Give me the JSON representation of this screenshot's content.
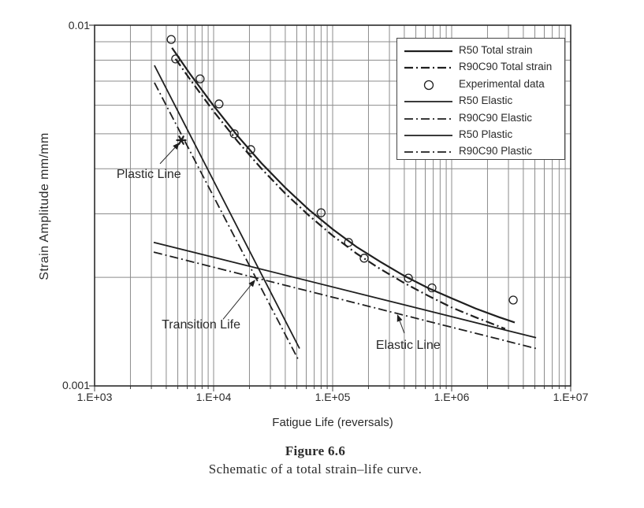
{
  "figure": {
    "label": "Figure 6.6",
    "caption": "Schematic of a total strain–life curve."
  },
  "chart_data": {
    "type": "line",
    "title": "",
    "xlabel": "Fatigue Life (reversals)",
    "ylabel": "Strain Amplitude mm/mm",
    "x_scale": "log",
    "y_scale": "log",
    "x_range": [
      1000,
      10000000
    ],
    "y_range": [
      0.001,
      0.01
    ],
    "x_ticks": [
      "1.E+03",
      "1.E+04",
      "1.E+05",
      "1.E+06",
      "1.E+07"
    ],
    "y_ticks": [
      "0.01",
      "0.001"
    ],
    "grid": "log minor gridlines on, both axes",
    "legend_position": "top-right",
    "colors": {
      "line": "#1f1f1f",
      "grid": "#8c8c8c",
      "text": "#2b2b2b"
    },
    "series": [
      {
        "name": "R50 Total strain",
        "style": "solid",
        "width": 2.2,
        "points": [
          [
            4470,
            0.00865
          ],
          [
            6310,
            0.00734
          ],
          [
            10000,
            0.00598
          ],
          [
            15850,
            0.00494
          ],
          [
            25120,
            0.00415
          ],
          [
            39810,
            0.00355
          ],
          [
            63100,
            0.00308
          ],
          [
            100000,
            0.00272
          ],
          [
            158500,
            0.00243
          ],
          [
            251200,
            0.00221
          ],
          [
            398100,
            0.00202
          ],
          [
            631000,
            0.00187
          ],
          [
            1000000,
            0.00175
          ],
          [
            1585000,
            0.00164
          ],
          [
            2512000,
            0.00155
          ],
          [
            3388000,
            0.0015
          ]
        ]
      },
      {
        "name": "R90C90 Total strain",
        "style": "dashdot",
        "width": 2.2,
        "points": [
          [
            4790,
            0.00807
          ],
          [
            6310,
            0.00709
          ],
          [
            10000,
            0.00577
          ],
          [
            15850,
            0.00477
          ],
          [
            25120,
            0.00401
          ],
          [
            39810,
            0.00342
          ],
          [
            63100,
            0.00297
          ],
          [
            100000,
            0.00261
          ],
          [
            158500,
            0.00233
          ],
          [
            251200,
            0.00211
          ],
          [
            398100,
            0.00193
          ],
          [
            631000,
            0.00178
          ],
          [
            1000000,
            0.00165
          ],
          [
            1585000,
            0.00155
          ],
          [
            2818000,
            0.00144
          ]
        ]
      },
      {
        "name": "Experimental data",
        "style": "circles",
        "width": 1.3,
        "points": [
          [
            4400,
            0.00913
          ],
          [
            4800,
            0.00806
          ],
          [
            7700,
            0.0071
          ],
          [
            11100,
            0.00605
          ],
          [
            14900,
            0.005
          ],
          [
            20500,
            0.00452
          ],
          [
            80000,
            0.00302
          ],
          [
            136000,
            0.0025
          ],
          [
            184000,
            0.00226
          ],
          [
            433000,
            0.00199
          ],
          [
            683000,
            0.00187
          ],
          [
            3290000,
            0.00173
          ]
        ]
      },
      {
        "name": "R50 Elastic",
        "style": "solid",
        "width": 1.8,
        "points": [
          [
            3140,
            0.0025
          ],
          [
            5120000,
            0.00136
          ]
        ]
      },
      {
        "name": "R90C90 Elastic",
        "style": "dashdot",
        "width": 1.8,
        "points": [
          [
            3140,
            0.00235
          ],
          [
            5120000,
            0.00127
          ]
        ]
      },
      {
        "name": "R50 Plastic",
        "style": "solid",
        "width": 1.8,
        "points": [
          [
            3180,
            0.00774
          ],
          [
            52700,
            0.00127
          ]
        ]
      },
      {
        "name": "R90C90 Plastic",
        "style": "dashdot",
        "width": 1.8,
        "points": [
          [
            3180,
            0.00693
          ],
          [
            51000,
            0.00119
          ]
        ]
      }
    ],
    "annotations": [
      {
        "text": "Plastic Line",
        "label_at": [
          1530,
          0.00403
        ],
        "arrow_from": [
          3545,
          0.00413
        ],
        "arrow_to": [
          5190,
          0.00473
        ],
        "marker": "star",
        "marker_at": [
          5350,
          0.0048
        ]
      },
      {
        "text": "Transition Life",
        "label_at": [
          3660,
          0.00154
        ],
        "arrow_from": [
          12000,
          0.00153
        ],
        "arrow_to": [
          22400,
          0.00197
        ]
      },
      {
        "text": "Elastic Line",
        "label_at": [
          231000,
          0.00135
        ],
        "arrow_from": [
          400000,
          0.0014
        ],
        "arrow_to": [
          349000,
          0.00158
        ]
      }
    ]
  }
}
